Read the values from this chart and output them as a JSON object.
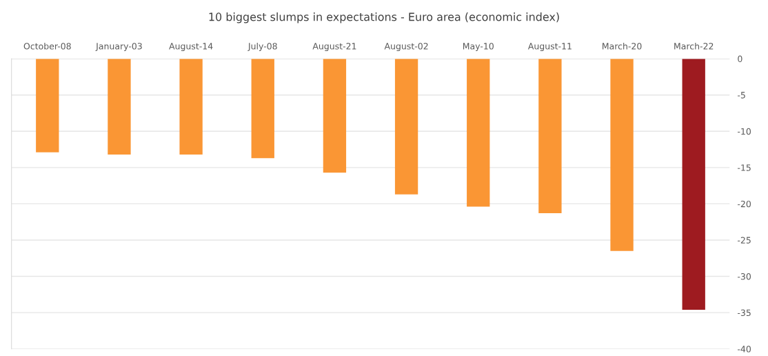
{
  "chart_data": {
    "type": "bar",
    "title": "10 biggest slumps in expectations - Euro area (economic index)",
    "categories": [
      "October-08",
      "January-03",
      "August-14",
      "July-08",
      "August-21",
      "August-02",
      "May-10",
      "August-11",
      "March-20",
      "March-22"
    ],
    "values": [
      -12.9,
      -13.2,
      -13.2,
      -13.7,
      -15.7,
      -18.7,
      -20.4,
      -21.3,
      -26.5,
      -34.6
    ],
    "colors": [
      "#fa9634",
      "#fa9634",
      "#fa9634",
      "#fa9634",
      "#fa9634",
      "#fa9634",
      "#fa9634",
      "#fa9634",
      "#fa9634",
      "#9e1b20"
    ],
    "ylim": [
      -40,
      0
    ],
    "yticks": [
      0,
      -5,
      -10,
      -15,
      -20,
      -25,
      -30,
      -35,
      -40
    ],
    "grid": "y"
  }
}
